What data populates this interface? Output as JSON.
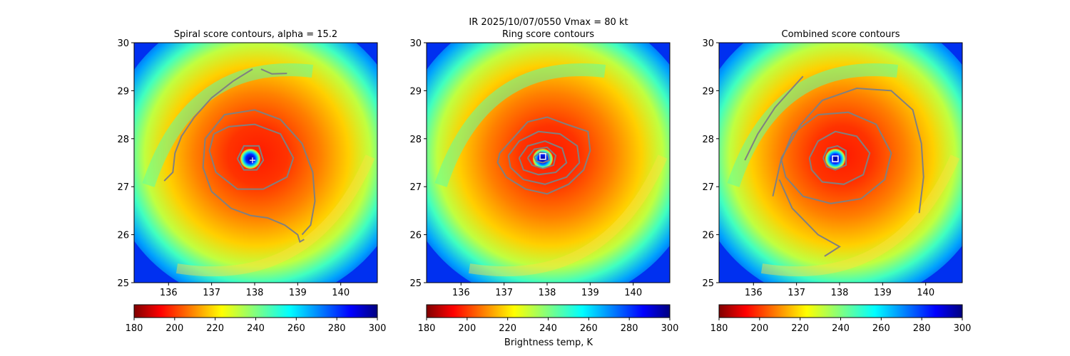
{
  "figure": {
    "suptitle": "IR  2025/10/07/0550    Vmax = 80 kt",
    "colorbar_label": "Brightness temp, K"
  },
  "chart_data": [
    {
      "type": "heatmap",
      "title": "Spiral score contours, alpha = 15.2",
      "xlim": [
        135.2,
        140.85
      ],
      "ylim": [
        25,
        30
      ],
      "xticks": [
        "136",
        "137",
        "138",
        "139",
        "140"
      ],
      "yticks": [
        "25",
        "26",
        "27",
        "28",
        "29",
        "30"
      ],
      "colorbar": {
        "min": 180,
        "max": 300,
        "ticks": [
          "180",
          "200",
          "220",
          "240",
          "260",
          "280",
          "300"
        ]
      },
      "storm_center": [
        137.9,
        27.58
      ],
      "marker": {
        "shape": "plus",
        "lon": 137.95,
        "lat": 27.55
      },
      "contours": [
        [
          [
            135.9,
            27.12
          ],
          [
            136.1,
            27.3
          ],
          [
            136.15,
            27.7
          ],
          [
            136.3,
            28.05
          ],
          [
            136.6,
            28.45
          ],
          [
            137.0,
            28.85
          ],
          [
            137.5,
            29.2
          ],
          [
            137.95,
            29.45
          ]
        ],
        [
          [
            138.15,
            29.45
          ],
          [
            138.4,
            29.35
          ],
          [
            138.75,
            29.36
          ]
        ],
        [
          [
            139.1,
            26.0
          ],
          [
            139.3,
            26.2
          ],
          [
            139.4,
            26.7
          ],
          [
            139.35,
            27.3
          ],
          [
            139.1,
            27.9
          ],
          [
            138.6,
            28.4
          ],
          [
            138.0,
            28.6
          ],
          [
            137.3,
            28.5
          ],
          [
            136.85,
            28.0
          ],
          [
            136.8,
            27.4
          ],
          [
            137.0,
            26.9
          ],
          [
            137.45,
            26.55
          ],
          [
            137.9,
            26.4
          ],
          [
            138.3,
            26.35
          ],
          [
            138.7,
            26.2
          ],
          [
            139.0,
            26.0
          ],
          [
            139.05,
            25.85
          ],
          [
            139.15,
            25.9
          ]
        ],
        [
          [
            137.05,
            28.1
          ],
          [
            137.4,
            28.25
          ],
          [
            138.0,
            28.3
          ],
          [
            138.6,
            28.1
          ],
          [
            138.9,
            27.6
          ],
          [
            138.75,
            27.2
          ],
          [
            138.2,
            26.95
          ],
          [
            137.6,
            26.95
          ],
          [
            137.1,
            27.3
          ],
          [
            136.95,
            27.75
          ],
          [
            137.05,
            28.1
          ]
        ],
        [
          [
            137.6,
            27.58
          ],
          [
            137.75,
            27.85
          ],
          [
            138.1,
            27.85
          ],
          [
            138.2,
            27.55
          ],
          [
            138.05,
            27.35
          ],
          [
            137.75,
            27.35
          ],
          [
            137.6,
            27.58
          ]
        ]
      ]
    },
    {
      "type": "heatmap",
      "title": "Ring score contours",
      "xlim": [
        135.2,
        140.85
      ],
      "ylim": [
        25,
        30
      ],
      "xticks": [
        "136",
        "137",
        "138",
        "139",
        "140"
      ],
      "yticks": [
        "25",
        "26",
        "27",
        "28",
        "29",
        "30"
      ],
      "colorbar": {
        "min": 180,
        "max": 300,
        "ticks": [
          "180",
          "200",
          "220",
          "240",
          "260",
          "280",
          "300"
        ]
      },
      "storm_center": [
        137.9,
        27.58
      ],
      "marker": {
        "shape": "square",
        "lon": 137.9,
        "lat": 27.63
      },
      "contours": [
        [
          [
            136.9,
            27.7
          ],
          [
            137.2,
            28.0
          ],
          [
            137.55,
            28.35
          ],
          [
            138.0,
            28.45
          ],
          [
            138.45,
            28.3
          ],
          [
            138.95,
            28.15
          ],
          [
            139.0,
            27.75
          ],
          [
            138.85,
            27.35
          ],
          [
            138.5,
            27.05
          ],
          [
            138.0,
            26.85
          ],
          [
            137.5,
            26.95
          ],
          [
            137.05,
            27.2
          ],
          [
            136.85,
            27.5
          ],
          [
            136.9,
            27.7
          ]
        ],
        [
          [
            137.1,
            27.65
          ],
          [
            137.35,
            27.95
          ],
          [
            137.8,
            28.15
          ],
          [
            138.3,
            28.1
          ],
          [
            138.7,
            27.85
          ],
          [
            138.75,
            27.5
          ],
          [
            138.45,
            27.2
          ],
          [
            137.95,
            27.05
          ],
          [
            137.45,
            27.15
          ],
          [
            137.15,
            27.4
          ],
          [
            137.1,
            27.65
          ]
        ],
        [
          [
            137.35,
            27.6
          ],
          [
            137.55,
            27.85
          ],
          [
            137.95,
            27.95
          ],
          [
            138.35,
            27.8
          ],
          [
            138.45,
            27.5
          ],
          [
            138.2,
            27.3
          ],
          [
            137.8,
            27.25
          ],
          [
            137.45,
            27.35
          ],
          [
            137.35,
            27.6
          ]
        ],
        [
          [
            137.55,
            27.6
          ],
          [
            137.7,
            27.78
          ],
          [
            138.0,
            27.82
          ],
          [
            138.2,
            27.65
          ],
          [
            138.15,
            27.45
          ],
          [
            137.9,
            27.38
          ],
          [
            137.65,
            27.45
          ],
          [
            137.55,
            27.6
          ]
        ],
        [
          [
            137.7,
            27.62
          ],
          [
            137.85,
            27.72
          ],
          [
            138.02,
            27.68
          ],
          [
            138.05,
            27.55
          ],
          [
            137.9,
            27.5
          ],
          [
            137.75,
            27.53
          ],
          [
            137.7,
            27.62
          ]
        ]
      ]
    },
    {
      "type": "heatmap",
      "title": "Combined score contours",
      "xlim": [
        135.2,
        140.85
      ],
      "ylim": [
        25,
        30
      ],
      "xticks": [
        "136",
        "137",
        "138",
        "139",
        "140"
      ],
      "yticks": [
        "25",
        "26",
        "27",
        "28",
        "29",
        "30"
      ],
      "colorbar": {
        "min": 180,
        "max": 300,
        "ticks": [
          "180",
          "200",
          "220",
          "240",
          "260",
          "280",
          "300"
        ]
      },
      "storm_center": [
        137.9,
        27.58
      ],
      "marker": {
        "shape": "square",
        "lon": 137.9,
        "lat": 27.58
      },
      "contours": [
        [
          [
            135.8,
            27.55
          ],
          [
            136.1,
            28.1
          ],
          [
            136.5,
            28.65
          ],
          [
            136.9,
            29.05
          ],
          [
            137.15,
            29.3
          ]
        ],
        [
          [
            136.45,
            26.8
          ],
          [
            136.65,
            27.6
          ],
          [
            137.1,
            28.3
          ],
          [
            137.6,
            28.8
          ],
          [
            138.4,
            29.05
          ],
          [
            139.2,
            29.0
          ],
          [
            139.7,
            28.6
          ],
          [
            139.9,
            27.9
          ],
          [
            139.95,
            27.2
          ],
          [
            139.85,
            26.45
          ]
        ],
        [
          [
            136.6,
            27.15
          ],
          [
            136.9,
            26.55
          ],
          [
            137.5,
            26.0
          ],
          [
            138.0,
            25.75
          ],
          [
            137.65,
            25.55
          ]
        ],
        [
          [
            136.65,
            27.55
          ],
          [
            136.9,
            28.1
          ],
          [
            137.5,
            28.5
          ],
          [
            138.2,
            28.55
          ],
          [
            138.85,
            28.3
          ],
          [
            139.2,
            27.7
          ],
          [
            139.05,
            27.15
          ],
          [
            138.5,
            26.75
          ],
          [
            137.8,
            26.65
          ],
          [
            137.15,
            26.8
          ],
          [
            136.75,
            27.2
          ],
          [
            136.65,
            27.55
          ]
        ],
        [
          [
            137.3,
            27.6
          ],
          [
            137.5,
            27.95
          ],
          [
            137.9,
            28.15
          ],
          [
            138.4,
            28.05
          ],
          [
            138.7,
            27.7
          ],
          [
            138.55,
            27.25
          ],
          [
            138.1,
            27.05
          ],
          [
            137.6,
            27.1
          ],
          [
            137.35,
            27.35
          ],
          [
            137.3,
            27.6
          ]
        ],
        [
          [
            137.62,
            27.6
          ],
          [
            137.72,
            27.8
          ],
          [
            137.95,
            27.85
          ],
          [
            138.15,
            27.75
          ],
          [
            138.15,
            27.45
          ],
          [
            137.9,
            27.35
          ],
          [
            137.7,
            27.42
          ],
          [
            137.62,
            27.6
          ]
        ]
      ]
    }
  ]
}
